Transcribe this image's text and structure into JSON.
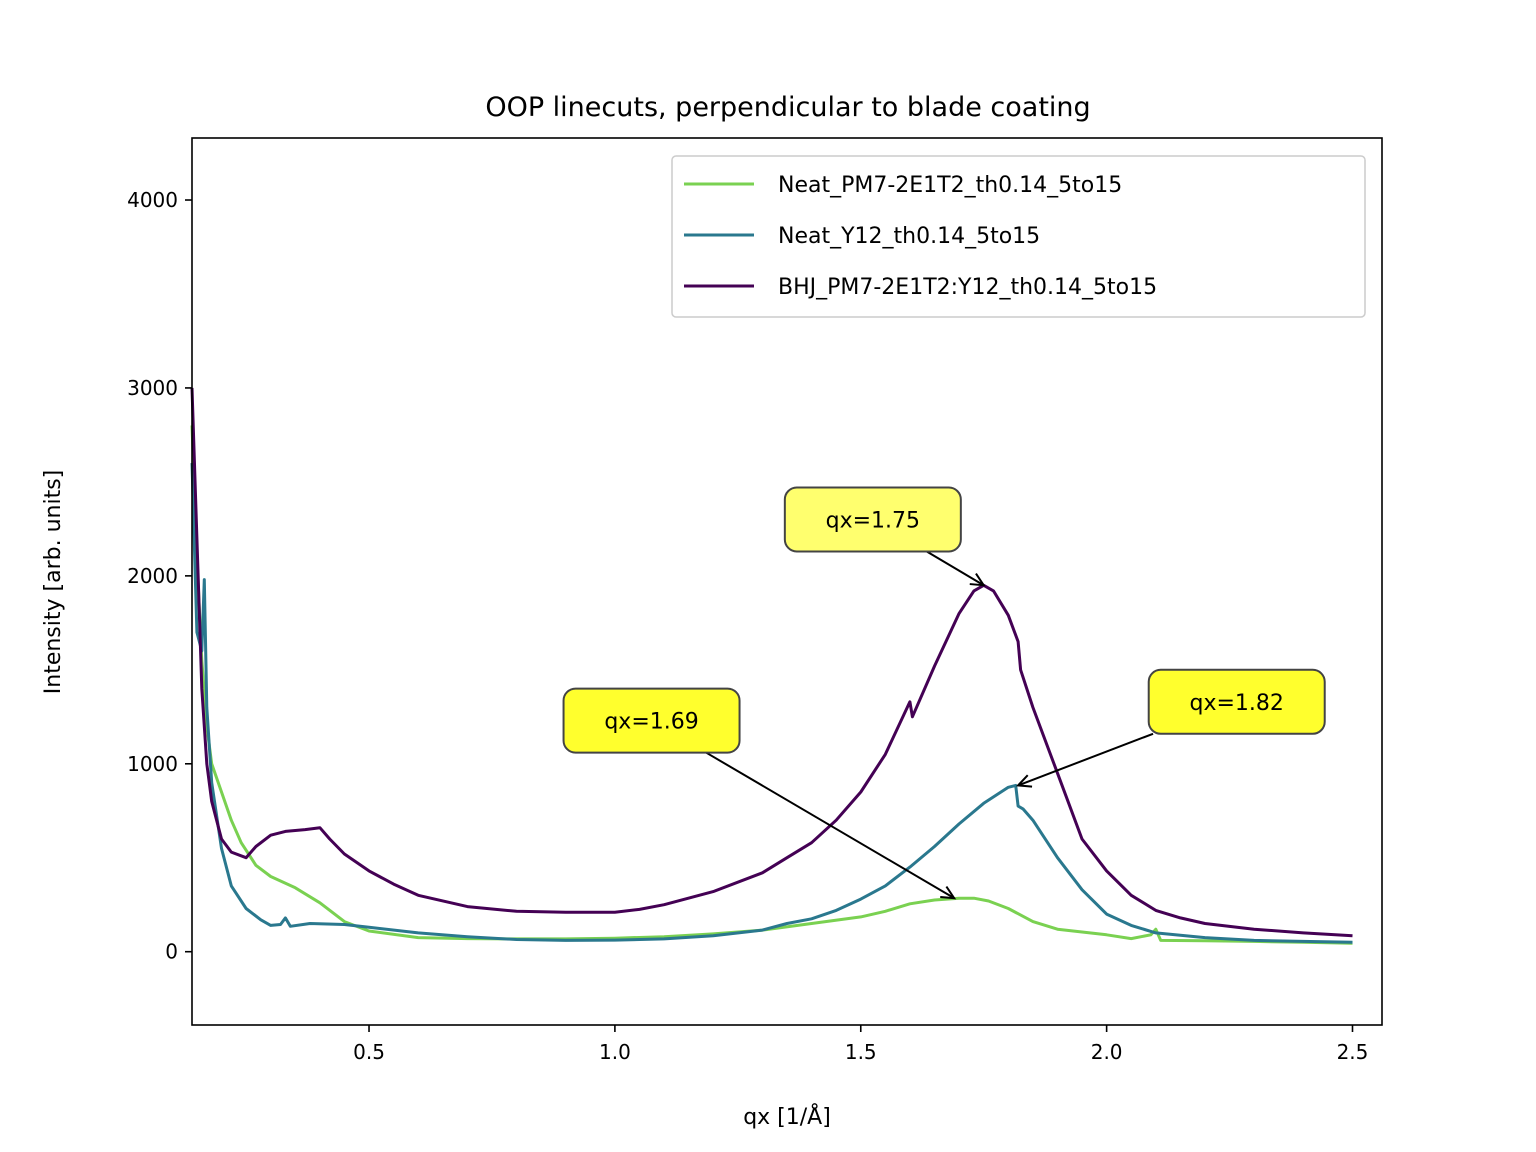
{
  "chart_data": {
    "type": "line",
    "title": "OOP linecuts, perpendicular to blade coating",
    "xlabel": "qx [1/Å]",
    "ylabel": "Intensity [arb. units]",
    "xlim": [
      0.14,
      2.56
    ],
    "ylim": [
      -390,
      4330
    ],
    "xticks": [
      {
        "value": 0.5,
        "label": "0.5"
      },
      {
        "value": 1.0,
        "label": "1.0"
      },
      {
        "value": 1.5,
        "label": "1.5"
      },
      {
        "value": 2.0,
        "label": "2.0"
      },
      {
        "value": 2.5,
        "label": "2.5"
      }
    ],
    "yticks": [
      {
        "value": 0,
        "label": "0"
      },
      {
        "value": 1000,
        "label": "1000"
      },
      {
        "value": 2000,
        "label": "2000"
      },
      {
        "value": 3000,
        "label": "3000"
      },
      {
        "value": 4000,
        "label": "4000"
      }
    ],
    "grid": false,
    "legend_position": "top-right",
    "series": [
      {
        "name": "Neat_PM7-2E1T2_th0.14_5to15",
        "color": "#7ad151",
        "x": [
          0.14,
          0.15,
          0.16,
          0.17,
          0.18,
          0.2,
          0.22,
          0.24,
          0.27,
          0.3,
          0.35,
          0.4,
          0.45,
          0.5,
          0.6,
          0.7,
          0.8,
          0.9,
          1.0,
          1.1,
          1.2,
          1.3,
          1.4,
          1.5,
          1.55,
          1.6,
          1.65,
          1.7,
          1.73,
          1.76,
          1.8,
          1.85,
          1.9,
          2.0,
          2.05,
          2.09,
          2.1,
          2.11,
          2.2,
          2.3,
          2.4,
          2.5
        ],
        "y": [
          2800,
          2100,
          1550,
          1200,
          1000,
          850,
          700,
          580,
          460,
          400,
          340,
          260,
          160,
          110,
          75,
          70,
          68,
          68,
          72,
          80,
          95,
          115,
          150,
          185,
          215,
          255,
          275,
          285,
          285,
          270,
          230,
          160,
          120,
          90,
          70,
          90,
          120,
          60,
          58,
          55,
          50,
          45
        ]
      },
      {
        "name": "Neat_Y12_th0.14_5to15",
        "color": "#2a788e",
        "x": [
          0.14,
          0.15,
          0.16,
          0.165,
          0.17,
          0.18,
          0.2,
          0.22,
          0.25,
          0.28,
          0.3,
          0.32,
          0.33,
          0.34,
          0.38,
          0.45,
          0.5,
          0.6,
          0.7,
          0.8,
          0.9,
          1.0,
          1.1,
          1.2,
          1.3,
          1.35,
          1.4,
          1.45,
          1.5,
          1.55,
          1.6,
          1.65,
          1.7,
          1.75,
          1.8,
          1.815,
          1.82,
          1.83,
          1.85,
          1.9,
          1.95,
          2.0,
          2.05,
          2.1,
          2.2,
          2.3,
          2.4,
          2.5
        ],
        "y": [
          2600,
          1700,
          1600,
          1980,
          1300,
          900,
          550,
          350,
          230,
          170,
          140,
          145,
          180,
          135,
          150,
          145,
          130,
          100,
          80,
          65,
          60,
          62,
          68,
          85,
          115,
          150,
          175,
          220,
          280,
          350,
          450,
          560,
          680,
          790,
          875,
          885,
          775,
          760,
          700,
          500,
          330,
          200,
          140,
          100,
          75,
          60,
          55,
          50
        ]
      },
      {
        "name": "BHJ_PM7-2E1T2:Y12_th0.14_5to15",
        "color": "#440154",
        "x": [
          0.14,
          0.15,
          0.16,
          0.17,
          0.18,
          0.2,
          0.22,
          0.25,
          0.27,
          0.3,
          0.33,
          0.37,
          0.4,
          0.42,
          0.45,
          0.5,
          0.55,
          0.6,
          0.7,
          0.8,
          0.9,
          1.0,
          1.05,
          1.1,
          1.2,
          1.3,
          1.35,
          1.4,
          1.45,
          1.5,
          1.55,
          1.6,
          1.605,
          1.65,
          1.7,
          1.73,
          1.75,
          1.77,
          1.8,
          1.82,
          1.825,
          1.85,
          1.9,
          1.95,
          2.0,
          2.05,
          2.1,
          2.15,
          2.2,
          2.3,
          2.4,
          2.5
        ],
        "y": [
          3000,
          2200,
          1400,
          1000,
          800,
          600,
          530,
          500,
          560,
          620,
          640,
          650,
          660,
          600,
          520,
          430,
          360,
          300,
          240,
          215,
          210,
          210,
          225,
          250,
          320,
          420,
          500,
          580,
          700,
          850,
          1050,
          1330,
          1250,
          1520,
          1800,
          1920,
          1950,
          1920,
          1790,
          1650,
          1500,
          1300,
          950,
          600,
          430,
          300,
          220,
          180,
          150,
          120,
          100,
          85
        ]
      }
    ],
    "annotations": [
      {
        "text": "qx=1.75",
        "x": 1.75,
        "y": 1950,
        "text_x": 1.37,
        "text_y": 2300,
        "box_color": "#ffff66"
      },
      {
        "text": "qx=1.82",
        "x": 1.82,
        "y": 885,
        "text_x": 2.11,
        "text_y": 1330,
        "box_color": "#ffff22"
      },
      {
        "text": "qx=1.69",
        "x": 1.69,
        "y": 285,
        "text_x": 0.92,
        "text_y": 1230,
        "box_color": "#ffff22"
      }
    ]
  }
}
